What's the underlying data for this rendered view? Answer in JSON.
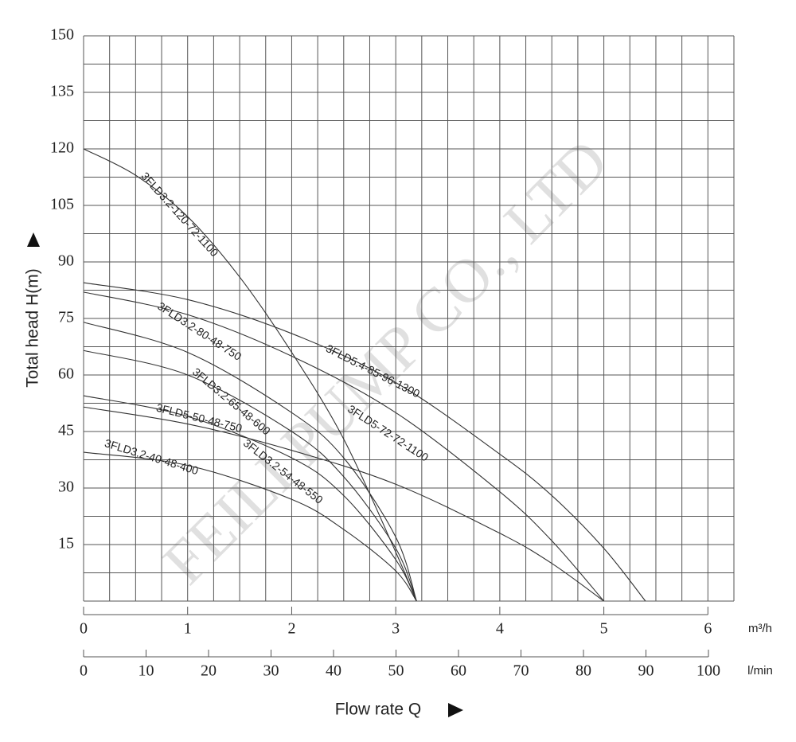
{
  "chart_data": {
    "type": "line",
    "y_label": "Total head H(m)",
    "x_label": "Flow rate Q",
    "x_unit": "m³/h",
    "x2_unit": "l/min",
    "watermark": "FEILI PUMP CO., LTD",
    "xlim": [
      0,
      6.25
    ],
    "ylim": [
      0,
      150
    ],
    "xticks": [
      0,
      1,
      2,
      3,
      4,
      5,
      6
    ],
    "yticks": [
      15,
      30,
      45,
      60,
      75,
      90,
      105,
      120,
      135,
      150
    ],
    "x2lim": [
      0,
      100
    ],
    "x2ticks": [
      0,
      10,
      20,
      30,
      40,
      50,
      60,
      70,
      80,
      90,
      100
    ],
    "xgrid": [
      0,
      0.25,
      0.5,
      0.75,
      1,
      1.25,
      1.5,
      1.75,
      2,
      2.25,
      2.5,
      2.75,
      3,
      3.25,
      3.5,
      3.75,
      4,
      4.25,
      4.5,
      4.75,
      5,
      5.25,
      5.5,
      5.75,
      6,
      6.25
    ],
    "ygrid": [
      0,
      7.5,
      15,
      22.5,
      30,
      37.5,
      45,
      52.5,
      60,
      67.5,
      75,
      82.5,
      90,
      97.5,
      105,
      112.5,
      120,
      127.5,
      135,
      142.5,
      150
    ],
    "grid": true,
    "color": "#333333",
    "series": [
      {
        "name": "3FLD3.2-120-72-1100",
        "x": [
          0,
          0.5,
          1,
          1.5,
          2,
          2.5,
          3,
          3.2
        ],
        "values": [
          120,
          113,
          102,
          86,
          66,
          43,
          13,
          0
        ]
      },
      {
        "name": "3FLD5.4-85-96-1300",
        "x": [
          0,
          1,
          2,
          3,
          4,
          4.5,
          5,
          5.4
        ],
        "values": [
          84.5,
          80,
          71,
          58,
          39,
          28,
          14,
          0
        ]
      },
      {
        "name": "3FLD5-72-72-1100",
        "x": [
          0,
          1,
          2,
          3,
          4,
          4.5,
          5
        ],
        "values": [
          82,
          76,
          65,
          50,
          29,
          16,
          0
        ]
      },
      {
        "name": "3FLD3.2-80-48-750",
        "x": [
          0,
          1,
          2,
          2.5,
          3,
          3.2
        ],
        "values": [
          74,
          66,
          50,
          38,
          17,
          0
        ]
      },
      {
        "name": "3FLD3.2-65-48-600",
        "x": [
          0,
          1,
          2,
          2.5,
          3,
          3.2
        ],
        "values": [
          66.5,
          60,
          45,
          33,
          14,
          0
        ]
      },
      {
        "name": "3FLD3.2-54-48-550",
        "x": [
          0,
          1,
          2,
          2.5,
          3,
          3.2
        ],
        "values": [
          54.5,
          49,
          38,
          28,
          11,
          0
        ]
      },
      {
        "name": "3FLD5-50-48-750",
        "x": [
          0,
          1,
          2,
          3,
          4,
          4.5,
          5
        ],
        "values": [
          51.5,
          47,
          40,
          31,
          18,
          10,
          0
        ]
      },
      {
        "name": "3FLD3.2-40-48-400",
        "x": [
          0,
          1,
          2,
          2.5,
          3,
          3.2
        ],
        "values": [
          39.5,
          36,
          27,
          19,
          8,
          0
        ]
      }
    ]
  }
}
